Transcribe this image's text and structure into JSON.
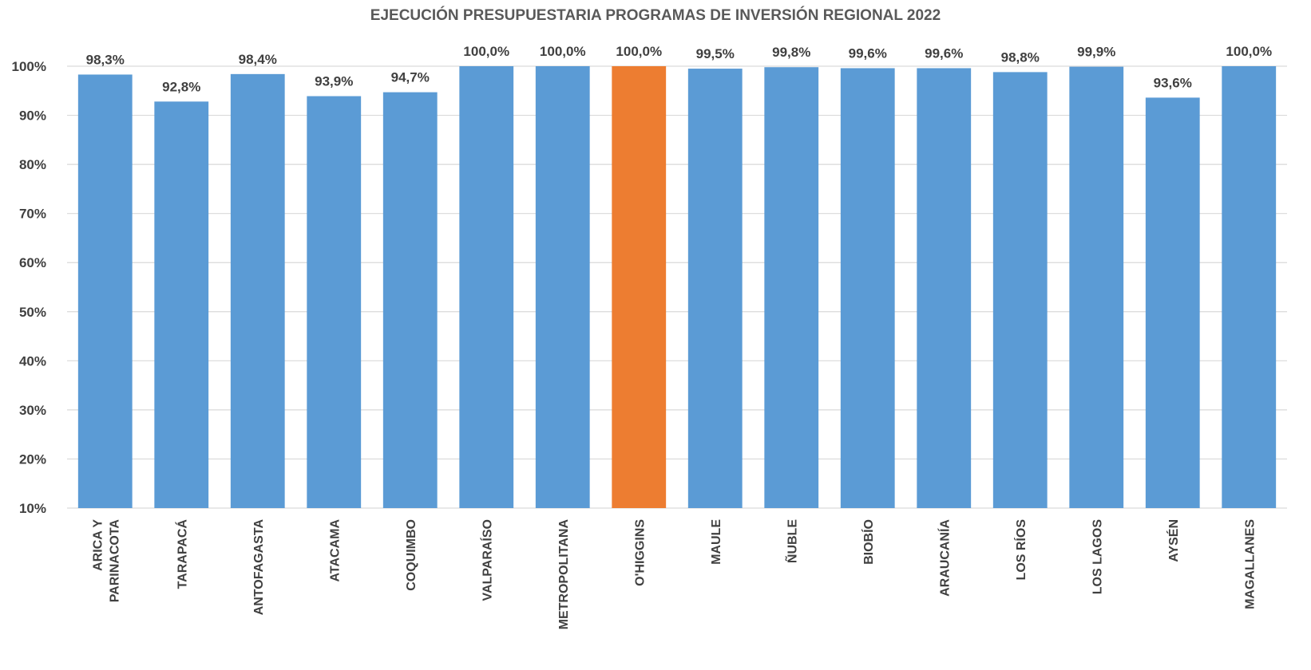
{
  "chart_data": {
    "type": "bar",
    "title": "EJECUCIÓN PRESUPUESTARIA PROGRAMAS DE INVERSIÓN REGIONAL 2022",
    "xlabel": "",
    "ylabel": "",
    "ylim": [
      10,
      100
    ],
    "yticks": [
      "10%",
      "20%",
      "30%",
      "40%",
      "50%",
      "60%",
      "70%",
      "80%",
      "90%",
      "100%"
    ],
    "grid": true,
    "legend": "none",
    "categories": [
      [
        "ARICA Y",
        "PARINACOTA"
      ],
      [
        "TARAPACÁ"
      ],
      [
        "ANTOFAGASTA"
      ],
      [
        "ATACAMA"
      ],
      [
        "COQUIMBO"
      ],
      [
        "VALPARAÍSO"
      ],
      [
        "METROPOLITANA"
      ],
      [
        "O'HIGGINS"
      ],
      [
        "MAULE"
      ],
      [
        "ÑUBLE"
      ],
      [
        "BIOBÍO"
      ],
      [
        "ARAUCANÍA"
      ],
      [
        "LOS RÍOS"
      ],
      [
        "LOS LAGOS"
      ],
      [
        "AYSÉN"
      ],
      [
        "MAGALLANES"
      ]
    ],
    "values": [
      98.3,
      92.8,
      98.4,
      93.9,
      94.7,
      100.0,
      100.0,
      100.0,
      99.5,
      99.8,
      99.6,
      99.6,
      98.8,
      99.9,
      93.6,
      100.0
    ],
    "data_labels": [
      "98,3%",
      "92,8%",
      "98,4%",
      "93,9%",
      "94,7%",
      "100,0%",
      "100,0%",
      "100,0%",
      "99,5%",
      "99,8%",
      "99,6%",
      "99,6%",
      "98,8%",
      "99,9%",
      "93,6%",
      "100,0%"
    ],
    "highlight_index": 7,
    "colors": {
      "bar": "#5b9bd5",
      "highlight": "#ed7d31",
      "grid": "#d9d9d9"
    }
  }
}
